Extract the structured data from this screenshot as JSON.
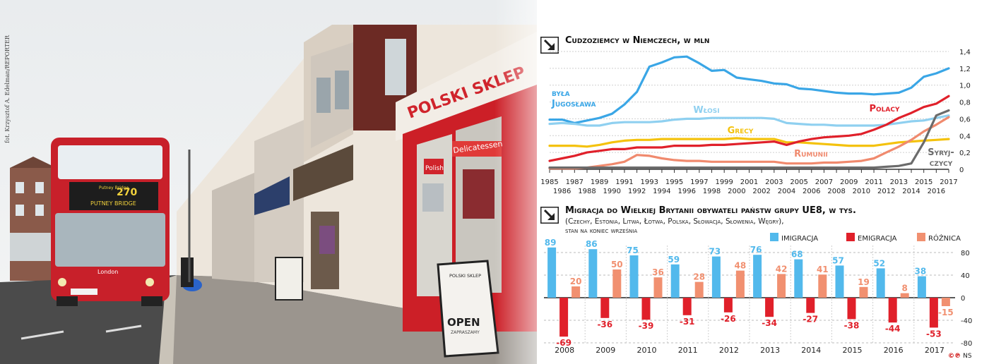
{
  "photo_credit": "fot. Krzysztof A. Edelman/REPORTER",
  "photo_text": {
    "bus_route": "270",
    "bus_dest_top": "Putney Bridge",
    "bus_dest": "PUTNEY BRIDGE",
    "bus_brand": "London",
    "shop_sign": "POLSKI SKLEP",
    "deli_sign": "Delicatessen",
    "polish_sign": "Polish",
    "board_title": "POLSKI SKLEP",
    "board_open": "OPEN",
    "board_sub": "ZAPRASZAMY"
  },
  "logo": {
    "mark": "©℗",
    "text": "NS"
  },
  "colors": {
    "jugoslawia": "#3aa6e6",
    "wlosi": "#8fd0f0",
    "grecy": "#f4c20d",
    "polacy": "#e0202a",
    "rumunii": "#f08a6e",
    "syryjczycy": "#6b6b6b",
    "imigracja": "#52b9ec",
    "emigracja": "#e0202a",
    "roznica": "#f19070",
    "title": "#111111"
  },
  "chart_data": [
    {
      "type": "line",
      "title": "Cudzoziemcy w Niemczech, w mln",
      "ylim": [
        0,
        1.4
      ],
      "yticks": [
        "1,4",
        "1,2",
        "1,0",
        "0,8",
        "0,6",
        "0,4",
        "0,2",
        "0"
      ],
      "x_top_labels": [
        "1985",
        "1987",
        "1989",
        "1991",
        "1993",
        "1995",
        "1997",
        "1999",
        "2001",
        "2003",
        "2005",
        "2007",
        "2009",
        "2011",
        "2013",
        "2015",
        "2017"
      ],
      "x_bottom_labels": [
        "1986",
        "1988",
        "1990",
        "1992",
        "1994",
        "1996",
        "1998",
        "2000",
        "2002",
        "2004",
        "2006",
        "2008",
        "2010",
        "2012",
        "2014",
        "2016"
      ],
      "x": [
        1985,
        1986,
        1987,
        1988,
        1989,
        1990,
        1991,
        1992,
        1993,
        1994,
        1995,
        1996,
        1997,
        1998,
        1999,
        2000,
        2001,
        2002,
        2003,
        2004,
        2005,
        2006,
        2007,
        2008,
        2009,
        2010,
        2011,
        2012,
        2013,
        2014,
        2015,
        2016,
        2017
      ],
      "series": [
        {
          "name": "była Jugosławia",
          "label_lines": [
            "była",
            "Jugosława"
          ],
          "color_key": "jugoslawia",
          "values": [
            0.59,
            0.59,
            0.55,
            0.58,
            0.61,
            0.66,
            0.77,
            0.92,
            1.22,
            1.27,
            1.33,
            1.34,
            1.26,
            1.17,
            1.18,
            1.09,
            1.07,
            1.05,
            1.02,
            1.01,
            0.96,
            0.95,
            0.93,
            0.91,
            0.9,
            0.9,
            0.89,
            0.9,
            0.91,
            0.97,
            1.1,
            1.14,
            1.2
          ]
        },
        {
          "name": "Włosi",
          "color_key": "wlosi",
          "values": [
            0.54,
            0.55,
            0.54,
            0.52,
            0.52,
            0.55,
            0.56,
            0.56,
            0.56,
            0.57,
            0.59,
            0.6,
            0.6,
            0.61,
            0.61,
            0.61,
            0.61,
            0.61,
            0.6,
            0.55,
            0.54,
            0.53,
            0.53,
            0.52,
            0.52,
            0.52,
            0.52,
            0.53,
            0.55,
            0.57,
            0.58,
            0.61,
            0.64
          ]
        },
        {
          "name": "Grecy",
          "color_key": "grecy",
          "values": [
            0.28,
            0.28,
            0.28,
            0.27,
            0.29,
            0.32,
            0.34,
            0.35,
            0.35,
            0.36,
            0.36,
            0.36,
            0.36,
            0.36,
            0.36,
            0.37,
            0.36,
            0.36,
            0.36,
            0.32,
            0.32,
            0.31,
            0.3,
            0.29,
            0.28,
            0.28,
            0.28,
            0.3,
            0.32,
            0.33,
            0.34,
            0.35,
            0.36
          ]
        },
        {
          "name": "Polacy",
          "color_key": "polacy",
          "values": [
            0.1,
            0.13,
            0.16,
            0.2,
            0.22,
            0.24,
            0.24,
            0.26,
            0.26,
            0.26,
            0.28,
            0.28,
            0.28,
            0.29,
            0.29,
            0.3,
            0.31,
            0.32,
            0.33,
            0.29,
            0.33,
            0.36,
            0.38,
            0.39,
            0.4,
            0.42,
            0.47,
            0.53,
            0.61,
            0.67,
            0.74,
            0.78,
            0.87
          ]
        },
        {
          "name": "Rumunii",
          "color_key": "rumunii",
          "values": [
            0.01,
            0.01,
            0.01,
            0.02,
            0.04,
            0.06,
            0.09,
            0.17,
            0.16,
            0.13,
            0.11,
            0.1,
            0.1,
            0.09,
            0.09,
            0.09,
            0.09,
            0.09,
            0.09,
            0.07,
            0.07,
            0.07,
            0.08,
            0.08,
            0.09,
            0.1,
            0.13,
            0.2,
            0.27,
            0.35,
            0.45,
            0.53,
            0.62
          ]
        },
        {
          "name": "Syryjczycy",
          "label_lines": [
            "Syryj-",
            "czycy"
          ],
          "color_key": "syryjczycy",
          "values": [
            0.02,
            0.02,
            0.02,
            0.02,
            0.02,
            0.02,
            0.02,
            0.02,
            0.02,
            0.02,
            0.02,
            0.02,
            0.02,
            0.02,
            0.02,
            0.02,
            0.02,
            0.02,
            0.02,
            0.02,
            0.02,
            0.02,
            0.02,
            0.02,
            0.02,
            0.02,
            0.02,
            0.03,
            0.04,
            0.07,
            0.32,
            0.64,
            0.7
          ]
        }
      ]
    },
    {
      "type": "bar",
      "title": "Migracja do Wielkiej Brytanii obywateli państw grupy UE8, w tys.",
      "subtitle_lines": [
        "(Czechy, Estonia, Litwa, Łotwa, Polska, Słowacja, Słowenia, Węgry),",
        "stan na koniec września"
      ],
      "ylim": [
        -80,
        80
      ],
      "yticks": [
        "80",
        "40",
        "0",
        "-40",
        "-80"
      ],
      "categories": [
        "2008",
        "2009",
        "2010",
        "2011",
        "2012",
        "2013",
        "2014",
        "2015",
        "2016",
        "2017"
      ],
      "series": [
        {
          "name": "IMIGRACJA",
          "color_key": "imigracja",
          "values": [
            89,
            86,
            75,
            59,
            73,
            76,
            68,
            57,
            52,
            38
          ]
        },
        {
          "name": "EMIGRACJA",
          "color_key": "emigracja",
          "values": [
            -69,
            -36,
            -39,
            -31,
            -26,
            -34,
            -27,
            -38,
            -44,
            -53
          ]
        },
        {
          "name": "RÓŻNICA",
          "color_key": "roznica",
          "values": [
            20,
            50,
            36,
            28,
            48,
            42,
            41,
            19,
            8,
            -15
          ]
        }
      ]
    }
  ]
}
